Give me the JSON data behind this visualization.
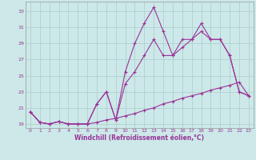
{
  "xlabel": "Windchill (Refroidissement éolien,°C)",
  "bg_color": "#cce8e8",
  "grid_color": "#aacccc",
  "line_color": "#993399",
  "xlim_min": -0.5,
  "xlim_max": 23.5,
  "ylim_min": 18.5,
  "ylim_max": 34.2,
  "xticks": [
    0,
    1,
    2,
    3,
    4,
    5,
    6,
    7,
    8,
    9,
    10,
    11,
    12,
    13,
    14,
    15,
    16,
    17,
    18,
    19,
    20,
    21,
    22,
    23
  ],
  "yticks": [
    19,
    21,
    23,
    25,
    27,
    29,
    31,
    33
  ],
  "line1_x": [
    0,
    1,
    2,
    3,
    4,
    5,
    6,
    7,
    8,
    9,
    10,
    11,
    12,
    13,
    14,
    15,
    16,
    17,
    18,
    19,
    20,
    21,
    22,
    23
  ],
  "line1_y": [
    20.5,
    19.2,
    19.0,
    19.3,
    19.0,
    19.0,
    19.0,
    19.2,
    19.5,
    19.7,
    20.0,
    20.3,
    20.7,
    21.0,
    21.5,
    21.8,
    22.2,
    22.5,
    22.8,
    23.2,
    23.5,
    23.8,
    24.2,
    22.5
  ],
  "line2_x": [
    0,
    1,
    2,
    3,
    4,
    5,
    6,
    7,
    8,
    9,
    10,
    11,
    12,
    13,
    14,
    15,
    16,
    17,
    18,
    19,
    20,
    21,
    22,
    23
  ],
  "line2_y": [
    20.5,
    19.2,
    19.0,
    19.3,
    19.0,
    19.0,
    19.0,
    21.5,
    23.0,
    19.5,
    24.0,
    25.5,
    27.5,
    29.5,
    27.5,
    27.5,
    28.5,
    29.5,
    30.5,
    29.5,
    29.5,
    27.5,
    23.0,
    22.5
  ],
  "line3_x": [
    0,
    1,
    2,
    3,
    4,
    5,
    6,
    7,
    8,
    9,
    10,
    11,
    12,
    13,
    14,
    15,
    16,
    17,
    18,
    19,
    20,
    21,
    22,
    23
  ],
  "line3_y": [
    20.5,
    19.2,
    19.0,
    19.3,
    19.0,
    19.0,
    19.0,
    21.5,
    23.0,
    19.5,
    25.5,
    29.0,
    31.5,
    33.5,
    30.5,
    27.5,
    29.5,
    29.5,
    31.5,
    29.5,
    29.5,
    27.5,
    23.0,
    22.5
  ]
}
